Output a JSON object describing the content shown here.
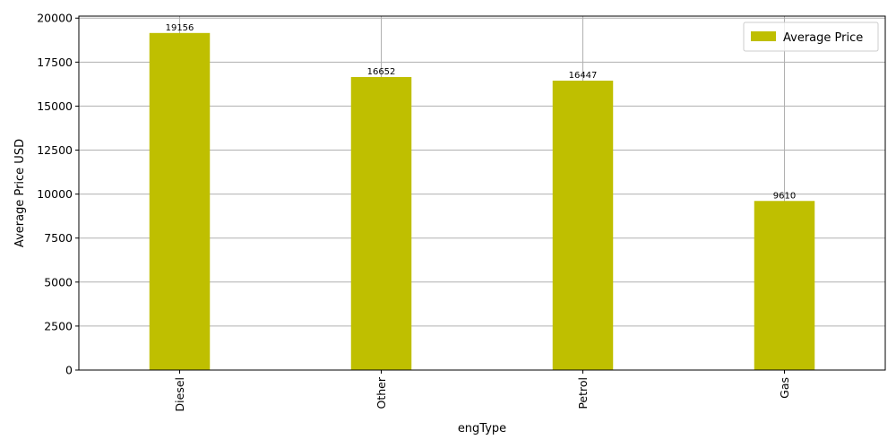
{
  "chart_data": {
    "type": "bar",
    "categories": [
      "Diesel",
      "Other",
      "Petrol",
      "Gas"
    ],
    "series": [
      {
        "name": "Average Price",
        "values": [
          19156,
          16652,
          16447,
          9610
        ]
      }
    ],
    "data_labels": [
      "19156",
      "16652",
      "16447",
      "9610"
    ],
    "title": "",
    "xlabel": "engType",
    "ylabel": "Average Price USD",
    "ylim": [
      0,
      20114
    ],
    "yticks": [
      0,
      2500,
      5000,
      7500,
      10000,
      12500,
      15000,
      17500,
      20000
    ],
    "grid": true,
    "legend_position": "top-right",
    "xtick_rotation": "vertical",
    "colors": {
      "bar": "#bfbf00",
      "grid": "#b0b0b0",
      "axis": "#000000"
    }
  }
}
